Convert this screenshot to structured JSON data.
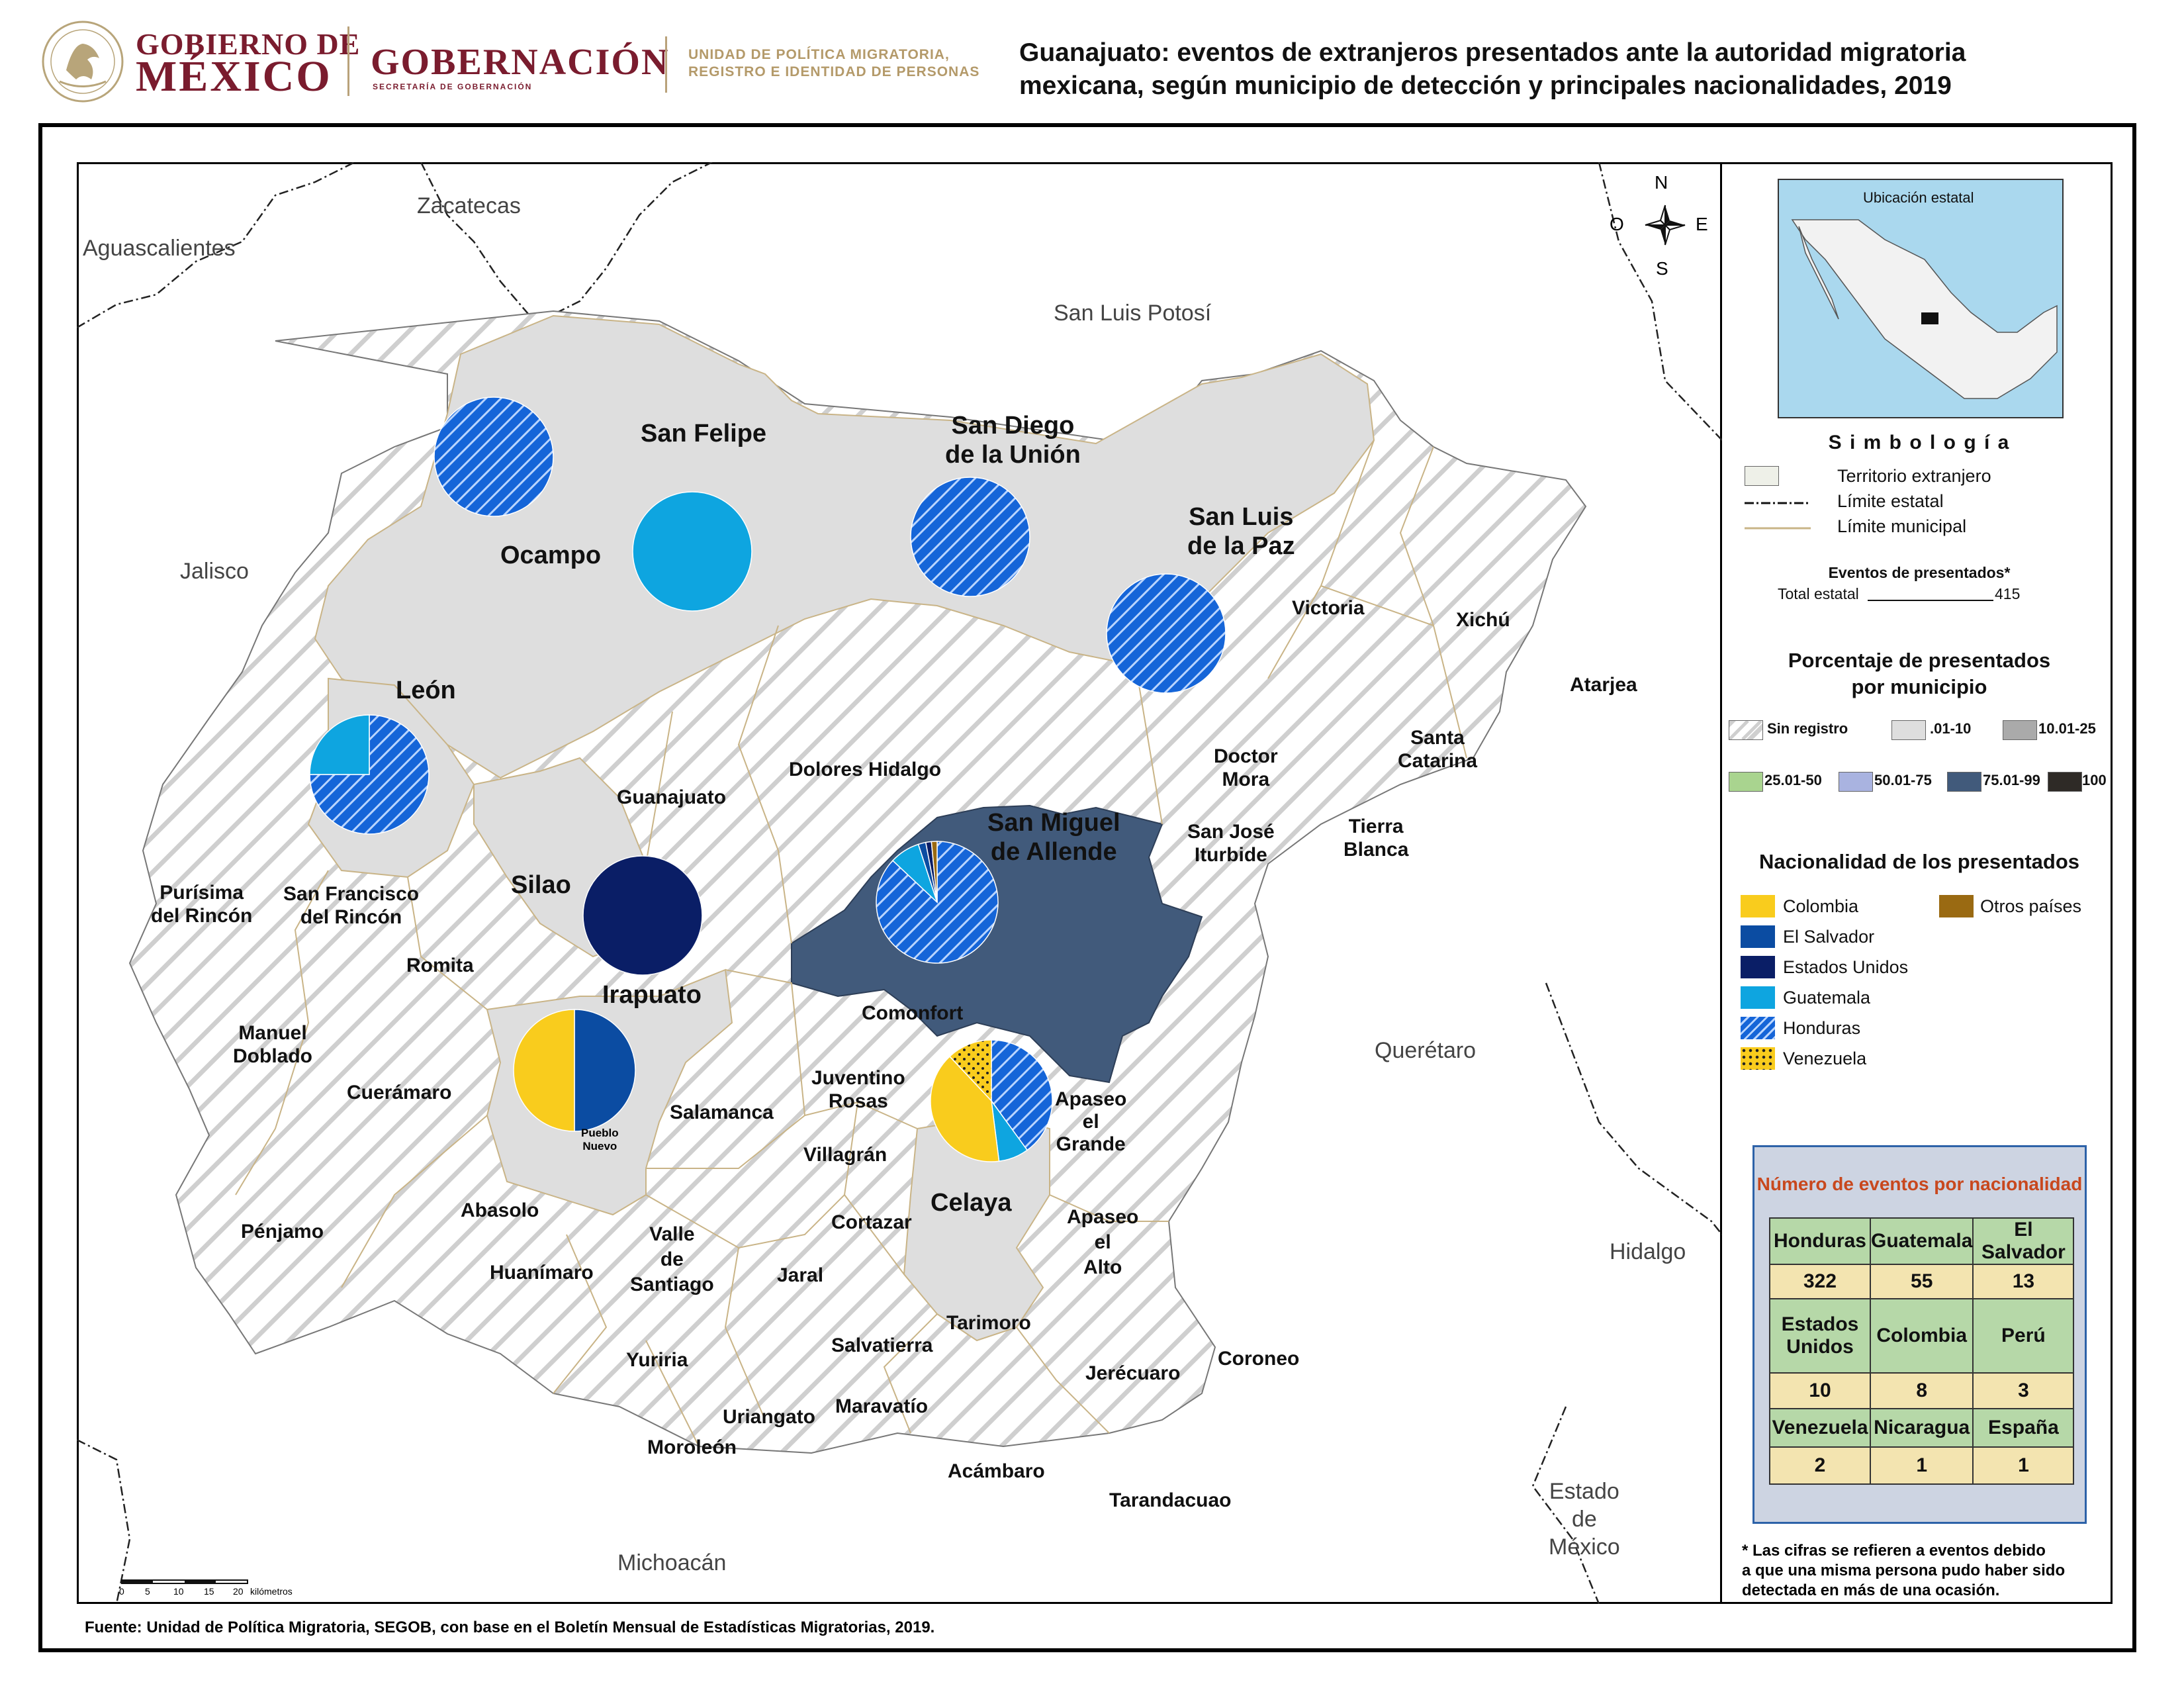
{
  "header": {
    "gob_line1": "GOBIERNO DE",
    "gob_line2": "MÉXICO",
    "gobernacion": "GOBERNACIÓN",
    "gobernacion_sub": "SECRETARÍA DE GOBERNACIÓN",
    "unidad_line1": "UNIDAD DE POLÍTICA MIGRATORIA,",
    "unidad_line2": "REGISTRO E IDENTIDAD DE PERSONAS",
    "title_line1": "Guanajuato: eventos de extranjeros presentados ante la autoridad migratoria",
    "title_line2": "mexicana, según municipio de detección y principales nacionalidades, 2019"
  },
  "map": {
    "regions": {
      "zacatecas": "Zacatecas",
      "aguascalientes": "Aguascalientes",
      "slp": "San Luis Potosí",
      "jalisco": "Jalisco",
      "queretaro": "Querétaro",
      "hidalgo": "Hidalgo",
      "michoacan": "Michoacán",
      "edomex_1": "Estado",
      "edomex_2": "de",
      "edomex_3": "México"
    },
    "municipalities": {
      "san_felipe": "San Felipe",
      "san_diego_1": "San Diego",
      "san_diego_2": "de la Unión",
      "ocampo": "Ocampo",
      "slp_paz_1": "San Luis",
      "slp_paz_2": "de la Paz",
      "victoria": "Victoria",
      "xichu": "Xichú",
      "atarjea": "Atarjea",
      "leon": "León",
      "guanajuato": "Guanajuato",
      "dolores": "Dolores Hidalgo",
      "doctor_mora_1": "Doctor",
      "doctor_mora_2": "Mora",
      "santa_catarina_1": "Santa",
      "santa_catarina_2": "Catarina",
      "sma_1": "San Miguel",
      "sma_2": "de Allende",
      "san_jose_1": "San José",
      "san_jose_2": "Iturbide",
      "tierra_blanca_1": "Tierra",
      "tierra_blanca_2": "Blanca",
      "purisima_1": "Purísima",
      "purisima_2": "del Rincón",
      "sfr_1": "San Francisco",
      "sfr_2": "del Rincón",
      "silao": "Silao",
      "romita": "Romita",
      "irapuato": "Irapuato",
      "comonfort": "Comonfort",
      "manuel_doblado_1": "Manuel",
      "manuel_doblado_2": "Doblado",
      "cueramaro": "Cuerámaro",
      "juventino_1": "Juventino",
      "juventino_2": "Rosas",
      "salamanca": "Salamanca",
      "pueblo_nuevo_1": "Pueblo",
      "pueblo_nuevo_2": "Nuevo",
      "apaseo_grande_1": "Apaseo",
      "apaseo_grande_2": "el",
      "apaseo_grande_3": "Grande",
      "villagran": "Villagrán",
      "celaya": "Celaya",
      "abasolo": "Abasolo",
      "penjamo": "Pénjamo",
      "valle_1": "Valle",
      "valle_2": "de",
      "valle_3": "Santiago",
      "cortazar": "Cortazar",
      "apaseo_alto_1": "Apaseo",
      "apaseo_alto_2": "el",
      "apaseo_alto_3": "Alto",
      "huanimaro": "Huanímaro",
      "jaral": "Jaral",
      "tarimoro": "Tarimoro",
      "yuriria": "Yuriria",
      "salvatierra": "Salvatierra",
      "jerecuaro": "Jerécuaro",
      "coroneo": "Coroneo",
      "uriangato": "Uriangato",
      "maravatio": "Maravatío",
      "moroleon": "Moroleón",
      "acambaro": "Acámbaro",
      "tarandacuao": "Tarandacuao"
    },
    "compass": {
      "n": "N",
      "s": "S",
      "e": "E",
      "o": "O"
    },
    "scale": {
      "ticks": [
        "0",
        "5",
        "10",
        "15",
        "20"
      ],
      "unit": "kilómetros"
    }
  },
  "pies": [
    {
      "municipality": "Ocampo",
      "slices": [
        {
          "nationality": "Honduras",
          "share": 1.0
        }
      ]
    },
    {
      "municipality": "San Felipe",
      "slices": [
        {
          "nationality": "Guatemala",
          "share": 1.0
        }
      ]
    },
    {
      "municipality": "San Diego de la Unión",
      "slices": [
        {
          "nationality": "Honduras",
          "share": 1.0
        }
      ]
    },
    {
      "municipality": "San Luis de la Paz",
      "slices": [
        {
          "nationality": "Honduras",
          "share": 1.0
        }
      ]
    },
    {
      "municipality": "León",
      "slices": [
        {
          "nationality": "Honduras",
          "share": 0.75
        },
        {
          "nationality": "Guatemala",
          "share": 0.25
        }
      ]
    },
    {
      "municipality": "Silao",
      "slices": [
        {
          "nationality": "Estados Unidos",
          "share": 1.0
        }
      ]
    },
    {
      "municipality": "San Miguel de Allende",
      "slices": [
        {
          "nationality": "Honduras",
          "share": 0.87
        },
        {
          "nationality": "Guatemala",
          "share": 0.08
        },
        {
          "nationality": "El Salvador",
          "share": 0.02
        },
        {
          "nationality": "Estados Unidos",
          "share": 0.015
        },
        {
          "nationality": "Otros países",
          "share": 0.015
        }
      ]
    },
    {
      "municipality": "Irapuato",
      "slices": [
        {
          "nationality": "El Salvador",
          "share": 0.5
        },
        {
          "nationality": "Colombia",
          "share": 0.5
        }
      ]
    },
    {
      "municipality": "Celaya",
      "slices": [
        {
          "nationality": "Honduras",
          "share": 0.4
        },
        {
          "nationality": "Guatemala",
          "share": 0.08
        },
        {
          "nationality": "Colombia",
          "share": 0.4
        },
        {
          "nationality": "Venezuela",
          "share": 0.12
        }
      ]
    }
  ],
  "colors": {
    "colombia": "#f9cc1d",
    "el_salvador": "#0b4ca2",
    "estados_unidos": "#0a1e66",
    "guatemala": "#0ea5e0",
    "honduras": "#1565d8",
    "otros": "#9a6a12",
    "sma_fill": "#415a7b",
    "grey_fill": "#dedede"
  },
  "legend": {
    "ubicacion": "Ubicación estatal",
    "simbologia": "S i m b o l o g í a",
    "territorio": "Territorio extranjero",
    "limite_estatal": "Límite estatal",
    "limite_municipal": "Límite municipal",
    "eventos_title": "Eventos de presentados*",
    "total_label": "Total estatal",
    "total_value": "415",
    "pct_title_1": "Porcentaje de presentados",
    "pct_title_2": "por municipio",
    "pct_classes": [
      "Sin registro",
      ".01-10",
      "10.01-25",
      "25.01-50",
      "50.01-75",
      "75.01-99",
      "100"
    ],
    "nat_title": "Nacionalidad de los presentados",
    "nationalities": [
      "Colombia",
      "El Salvador",
      "Estados Unidos",
      "Guatemala",
      "Honduras",
      "Venezuela",
      "Otros países"
    ]
  },
  "table": {
    "title": "Número de eventos por nacionalidad",
    "rows": [
      {
        "headers": [
          "Honduras",
          "Guatemala",
          "El Salvador"
        ],
        "values": [
          "322",
          "55",
          "13"
        ]
      },
      {
        "headers": [
          "Estados Unidos",
          "Colombia",
          "Perú"
        ],
        "values": [
          "10",
          "8",
          "3"
        ]
      },
      {
        "headers": [
          "Venezuela",
          "Nicaragua",
          "España"
        ],
        "values": [
          "2",
          "1",
          "1"
        ]
      }
    ]
  },
  "note_1": "* Las cifras se refieren a eventos debido",
  "note_2": "a que una misma persona pudo haber sido",
  "note_3": "detectada en más de una ocasión.",
  "fuente": "Fuente: Unidad de Política Migratoria, SEGOB, con base en el Boletín Mensual de Estadísticas Migratorias, 2019."
}
